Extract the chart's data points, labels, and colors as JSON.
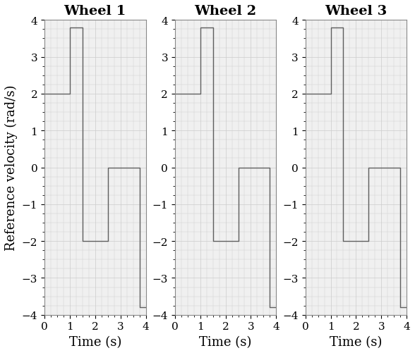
{
  "titles": [
    "Wheel 1",
    "Wheel 2",
    "Wheel 3"
  ],
  "xlabel": "Time (s)",
  "ylabel": "Reference velocity (rad/s)",
  "ylim": [
    -4,
    4
  ],
  "xlim": [
    0,
    4
  ],
  "yticks": [
    -4,
    -3,
    -2,
    -1,
    0,
    1,
    2,
    3,
    4
  ],
  "xticks": [
    0,
    1,
    2,
    3,
    4
  ],
  "line_color": "#606060",
  "grid_color": "#cccccc",
  "bg_color": "#f0f0f0",
  "wheel1_t": [
    0,
    1,
    1,
    1.5,
    1.5,
    2.5,
    2.5,
    3.75,
    3.75,
    4
  ],
  "wheel1_v": [
    2,
    2,
    3.8,
    3.8,
    -2,
    -2,
    0,
    0,
    -3.8,
    -3.8
  ],
  "wheel2_t": [
    0,
    1,
    1,
    1.5,
    1.5,
    2.5,
    2.5,
    3.75,
    3.75,
    4
  ],
  "wheel2_v": [
    2,
    2,
    3.8,
    3.8,
    -2,
    -2,
    0,
    0,
    -3.8,
    -3.8
  ],
  "wheel3_t": [
    0,
    1,
    1,
    1.5,
    1.5,
    2.5,
    2.5,
    3.75,
    3.75,
    4
  ],
  "wheel3_v": [
    2,
    2,
    3.8,
    3.8,
    -2,
    -2,
    0,
    0,
    -3.8,
    -3.8
  ],
  "title_fontsize": 14,
  "label_fontsize": 13,
  "tick_fontsize": 11
}
